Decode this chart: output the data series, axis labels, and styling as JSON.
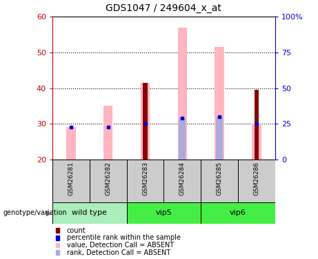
{
  "title": "GDS1047 / 249604_x_at",
  "samples": [
    "GSM26281",
    "GSM26282",
    "GSM26283",
    "GSM26284",
    "GSM26285",
    "GSM26286"
  ],
  "ylim_left": [
    20,
    60
  ],
  "ylim_right": [
    0,
    100
  ],
  "yticks_left": [
    20,
    30,
    40,
    50,
    60
  ],
  "yticks_right": [
    0,
    25,
    50,
    75,
    100
  ],
  "yticklabels_right": [
    "0",
    "25",
    "50",
    "75",
    "100%"
  ],
  "bar_bottom": 20,
  "pink_bar_tops": [
    29.0,
    35.0,
    41.5,
    57.0,
    51.5,
    30.0
  ],
  "dark_red_bar_tops": [
    null,
    null,
    41.5,
    null,
    null,
    39.5
  ],
  "blue_marker_y": [
    29.0,
    29.0,
    30.0,
    31.5,
    32.0,
    30.0
  ],
  "light_blue_bar_tops": [
    null,
    null,
    null,
    31.5,
    32.0,
    null
  ],
  "colors": {
    "dark_red": "#880000",
    "pink": "#FFB6C1",
    "blue": "#0000CC",
    "light_blue": "#AAAADD",
    "axis_left_color": "#CC0000",
    "axis_right_color": "#0000CC",
    "grid_color": "black",
    "sample_box_color": "#CCCCCC",
    "group_box_wt": "#AAEEBB",
    "group_box_vip": "#44EE44",
    "title_color": "black"
  },
  "legend": [
    {
      "color": "#880000",
      "label": "count"
    },
    {
      "color": "#0000CC",
      "label": "percentile rank within the sample"
    },
    {
      "color": "#FFB6C1",
      "label": "value, Detection Call = ABSENT"
    },
    {
      "color": "#AAAADD",
      "label": "rank, Detection Call = ABSENT"
    }
  ],
  "group_spans": [
    [
      0,
      2,
      "wild type"
    ],
    [
      2,
      4,
      "vip5"
    ],
    [
      4,
      6,
      "vip6"
    ]
  ],
  "genotype_label": "genotype/variation",
  "pink_bar_width": 0.25,
  "dark_red_bar_width": 0.12,
  "light_blue_bar_width": 0.18
}
